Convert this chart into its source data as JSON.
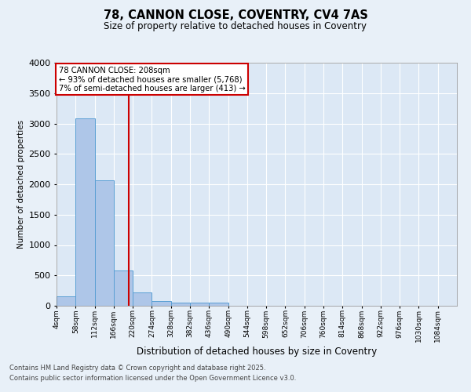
{
  "title1": "78, CANNON CLOSE, COVENTRY, CV4 7AS",
  "title2": "Size of property relative to detached houses in Coventry",
  "xlabel": "Distribution of detached houses by size in Coventry",
  "ylabel": "Number of detached properties",
  "bins": [
    "4sqm",
    "58sqm",
    "112sqm",
    "166sqm",
    "220sqm",
    "274sqm",
    "328sqm",
    "382sqm",
    "436sqm",
    "490sqm",
    "544sqm",
    "598sqm",
    "652sqm",
    "706sqm",
    "760sqm",
    "814sqm",
    "868sqm",
    "922sqm",
    "976sqm",
    "1030sqm",
    "1084sqm"
  ],
  "bin_edges": [
    4,
    58,
    112,
    166,
    220,
    274,
    328,
    382,
    436,
    490,
    544,
    598,
    652,
    706,
    760,
    814,
    868,
    922,
    976,
    1030,
    1084
  ],
  "bar_values": [
    150,
    3080,
    2060,
    580,
    220,
    75,
    50,
    50,
    50,
    0,
    0,
    0,
    0,
    0,
    0,
    0,
    0,
    0,
    0,
    0
  ],
  "bar_color": "#aec6e8",
  "bar_edge_color": "#5a9fd4",
  "vline_x": 208,
  "vline_color": "#cc0000",
  "annotation_text": "78 CANNON CLOSE: 208sqm\n← 93% of detached houses are smaller (5,768)\n7% of semi-detached houses are larger (413) →",
  "annotation_box_color": "#cc0000",
  "ylim": [
    0,
    4000
  ],
  "yticks": [
    0,
    500,
    1000,
    1500,
    2000,
    2500,
    3000,
    3500,
    4000
  ],
  "footer1": "Contains HM Land Registry data © Crown copyright and database right 2025.",
  "footer2": "Contains public sector information licensed under the Open Government Licence v3.0.",
  "bg_color": "#e8f0f8",
  "plot_bg_color": "#dce8f5",
  "grid_color": "#ffffff"
}
